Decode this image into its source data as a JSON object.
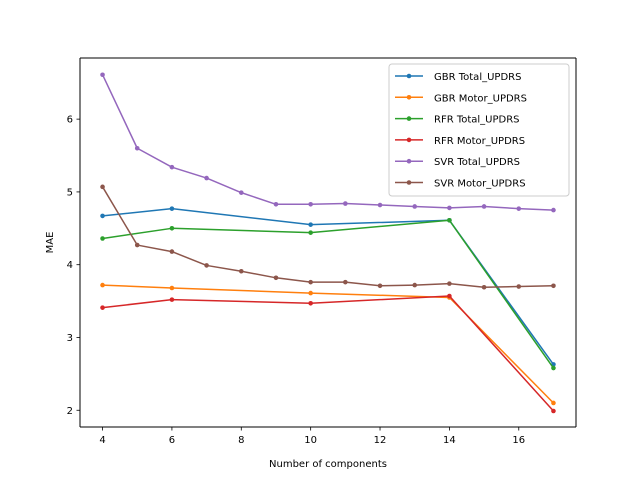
{
  "chart_data": {
    "type": "line",
    "title": "",
    "xlabel": "Number of components",
    "ylabel": "MAE",
    "xlim": [
      3.35,
      17.65
    ],
    "ylim": [
      1.77,
      6.84
    ],
    "xticks": [
      4,
      6,
      8,
      10,
      12,
      14,
      16
    ],
    "yticks": [
      2,
      3,
      4,
      5,
      6
    ],
    "grid": false,
    "legend_position": "upper-right",
    "series": [
      {
        "name": "GBR Total_UPDRS",
        "color": "#1f77b4",
        "x": [
          4,
          6,
          10,
          14,
          17
        ],
        "y": [
          4.67,
          4.77,
          4.55,
          4.61,
          2.63
        ]
      },
      {
        "name": "GBR Motor_UPDRS",
        "color": "#ff7f0e",
        "x": [
          4,
          6,
          10,
          14,
          17
        ],
        "y": [
          3.72,
          3.68,
          3.61,
          3.55,
          2.1
        ]
      },
      {
        "name": "RFR Total_UPDRS",
        "color": "#2ca02c",
        "x": [
          4,
          6,
          10,
          14,
          17
        ],
        "y": [
          4.36,
          4.5,
          4.44,
          4.61,
          2.58
        ]
      },
      {
        "name": "RFR Motor_UPDRS",
        "color": "#d62728",
        "x": [
          4,
          6,
          10,
          14,
          17
        ],
        "y": [
          3.41,
          3.52,
          3.47,
          3.57,
          1.99
        ]
      },
      {
        "name": "SVR Total_UPDRS",
        "color": "#9467bd",
        "x": [
          4,
          5,
          6,
          7,
          8,
          9,
          10,
          11,
          12,
          13,
          14,
          15,
          16,
          17
        ],
        "y": [
          6.61,
          5.6,
          5.34,
          5.19,
          4.99,
          4.83,
          4.83,
          4.84,
          4.82,
          4.8,
          4.78,
          4.8,
          4.77,
          4.75
        ]
      },
      {
        "name": "SVR Motor_UPDRS",
        "color": "#8c564b",
        "x": [
          4,
          5,
          6,
          7,
          8,
          9,
          10,
          11,
          12,
          13,
          14,
          15,
          16,
          17
        ],
        "y": [
          5.07,
          4.27,
          4.18,
          3.99,
          3.91,
          3.82,
          3.76,
          3.76,
          3.71,
          3.72,
          3.74,
          3.69,
          3.7,
          3.71
        ]
      }
    ]
  }
}
